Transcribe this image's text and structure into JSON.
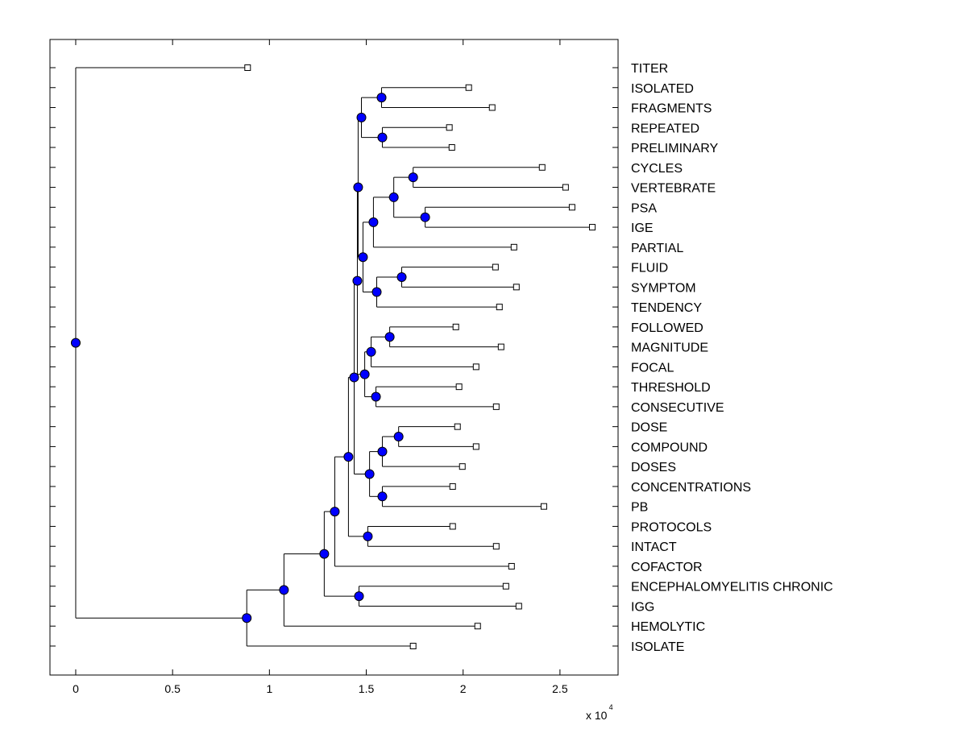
{
  "chart_data": {
    "type": "dendrogram",
    "title": "",
    "xlabel": "",
    "ylabel": "",
    "x_multiplier_label": "x 10",
    "x_multiplier_exponent": "4",
    "xlim": [
      -0.133,
      2.8
    ],
    "xticks": [
      0,
      0.5,
      1,
      1.5,
      2,
      2.5
    ],
    "xtick_labels": [
      "0",
      "0.5",
      "1",
      "1.5",
      "2",
      "2.5"
    ],
    "grid": false,
    "colors": {
      "node": "#0000ff",
      "leaf": "#ffffff",
      "line": "#000000"
    },
    "tree": {
      "h": 0,
      "children": [
        {
          "label": "TITER",
          "h": 0.8875
        },
        {
          "h": 0.883,
          "children": [
            {
              "h": 1.075,
              "children": [
                {
                  "h": 1.283,
                  "children": [
                    {
                      "h": 1.3375,
                      "children": [
                        {
                          "h": 1.408,
                          "children": [
                            {
                              "h": 1.4375,
                              "children": [
                                {
                                  "h": 1.454,
                                  "children": [
                                    {
                                      "h": 1.458,
                                      "children": [
                                        {
                                          "h": 1.475,
                                          "children": [
                                            {
                                              "h": 1.579,
                                              "children": [
                                                {
                                                  "label": "ISOLATED",
                                                  "h": 2.029
                                                },
                                                {
                                                  "label": "FRAGMENTS",
                                                  "h": 2.15
                                                }
                                              ]
                                            },
                                            {
                                              "h": 1.583,
                                              "children": [
                                                {
                                                  "label": "REPEATED",
                                                  "h": 1.929
                                                },
                                                {
                                                  "label": "PRELIMINARY",
                                                  "h": 1.942
                                                }
                                              ]
                                            }
                                          ]
                                        },
                                        {
                                          "h": 1.483,
                                          "children": [
                                            {
                                              "h": 1.537,
                                              "children": [
                                                {
                                                  "h": 1.642,
                                                  "children": [
                                                    {
                                                      "h": 1.742,
                                                      "children": [
                                                        {
                                                          "label": "CYCLES",
                                                          "h": 2.408
                                                        },
                                                        {
                                                          "label": "VERTEBRATE",
                                                          "h": 2.529
                                                        }
                                                      ]
                                                    },
                                                    {
                                                      "h": 1.804,
                                                      "children": [
                                                        {
                                                          "label": "PSA",
                                                          "h": 2.5625
                                                        },
                                                        {
                                                          "label": "IGE",
                                                          "h": 2.667
                                                        }
                                                      ]
                                                    }
                                                  ]
                                                },
                                                {
                                                  "label": "PARTIAL",
                                                  "h": 2.2625
                                                }
                                              ]
                                            },
                                            {
                                              "h": 1.554,
                                              "children": [
                                                {
                                                  "h": 1.683,
                                                  "children": [
                                                    {
                                                      "label": "FLUID",
                                                      "h": 2.167
                                                    },
                                                    {
                                                      "label": "SYMPTOM",
                                                      "h": 2.275
                                                    }
                                                  ]
                                                },
                                                {
                                                  "label": "TENDENCY",
                                                  "h": 2.1875
                                                }
                                              ]
                                            }
                                          ]
                                        }
                                      ]
                                    },
                                    {
                                      "h": 1.492,
                                      "children": [
                                        {
                                          "h": 1.525,
                                          "children": [
                                            {
                                              "h": 1.621,
                                              "children": [
                                                {
                                                  "label": "FOLLOWED",
                                                  "h": 1.9625
                                                },
                                                {
                                                  "label": "MAGNITUDE",
                                                  "h": 2.196
                                                }
                                              ]
                                            },
                                            {
                                              "label": "FOCAL",
                                              "h": 2.067
                                            }
                                          ]
                                        },
                                        {
                                          "h": 1.55,
                                          "children": [
                                            {
                                              "label": "THRESHOLD",
                                              "h": 1.979
                                            },
                                            {
                                              "label": "CONSECUTIVE",
                                              "h": 2.171
                                            }
                                          ]
                                        }
                                      ]
                                    }
                                  ]
                                },
                                {
                                  "h": 1.517,
                                  "children": [
                                    {
                                      "h": 1.583,
                                      "children": [
                                        {
                                          "h": 1.667,
                                          "children": [
                                            {
                                              "label": "DOSE",
                                              "h": 1.971
                                            },
                                            {
                                              "label": "COMPOUND",
                                              "h": 2.067
                                            }
                                          ]
                                        },
                                        {
                                          "label": "DOSES",
                                          "h": 1.996
                                        }
                                      ]
                                    },
                                    {
                                      "h": 1.583,
                                      "children": [
                                        {
                                          "label": "CONCENTRATIONS",
                                          "h": 1.946
                                        },
                                        {
                                          "label": "PB",
                                          "h": 2.417
                                        }
                                      ]
                                    }
                                  ]
                                }
                              ]
                            },
                            {
                              "h": 1.508,
                              "children": [
                                {
                                  "label": "PROTOCOLS",
                                  "h": 1.946
                                },
                                {
                                  "label": "INTACT",
                                  "h": 2.171
                                }
                              ]
                            }
                          ]
                        },
                        {
                          "label": "COFACTOR",
                          "h": 2.25
                        }
                      ]
                    },
                    {
                      "h": 1.4625,
                      "children": [
                        {
                          "label": "ENCEPHALOMYELITIS CHRONIC",
                          "h": 2.221
                        },
                        {
                          "label": "IGG",
                          "h": 2.2875
                        }
                      ]
                    }
                  ]
                },
                {
                  "label": "HEMOLYTIC",
                  "h": 2.075
                }
              ]
            },
            {
              "label": "ISOLATE",
              "h": 1.742
            }
          ]
        }
      ]
    }
  }
}
